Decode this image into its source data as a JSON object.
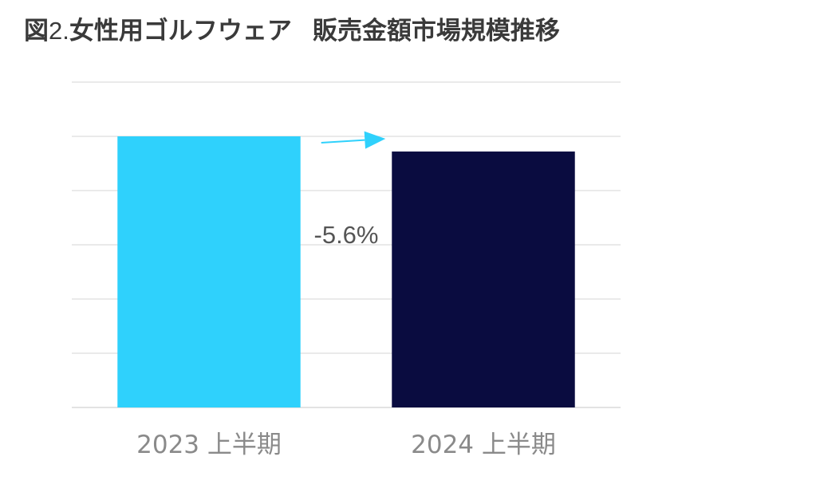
{
  "title": {
    "prefix": "図",
    "number": "2.",
    "main": "女性用ゴルフウェア",
    "sub": "販売金額市場規模推移"
  },
  "chart_data": {
    "type": "bar",
    "categories": [
      "2023 上半期",
      "2024 上半期"
    ],
    "values": [
      100,
      94.4
    ],
    "ylim": [
      0,
      120
    ],
    "grid": true,
    "annotation": "-5.6%",
    "colors": [
      "#2fd1fc",
      "#0a0c40"
    ],
    "arrow_color": "#2fd1fc",
    "gridline_color": "#e3e3e3"
  }
}
